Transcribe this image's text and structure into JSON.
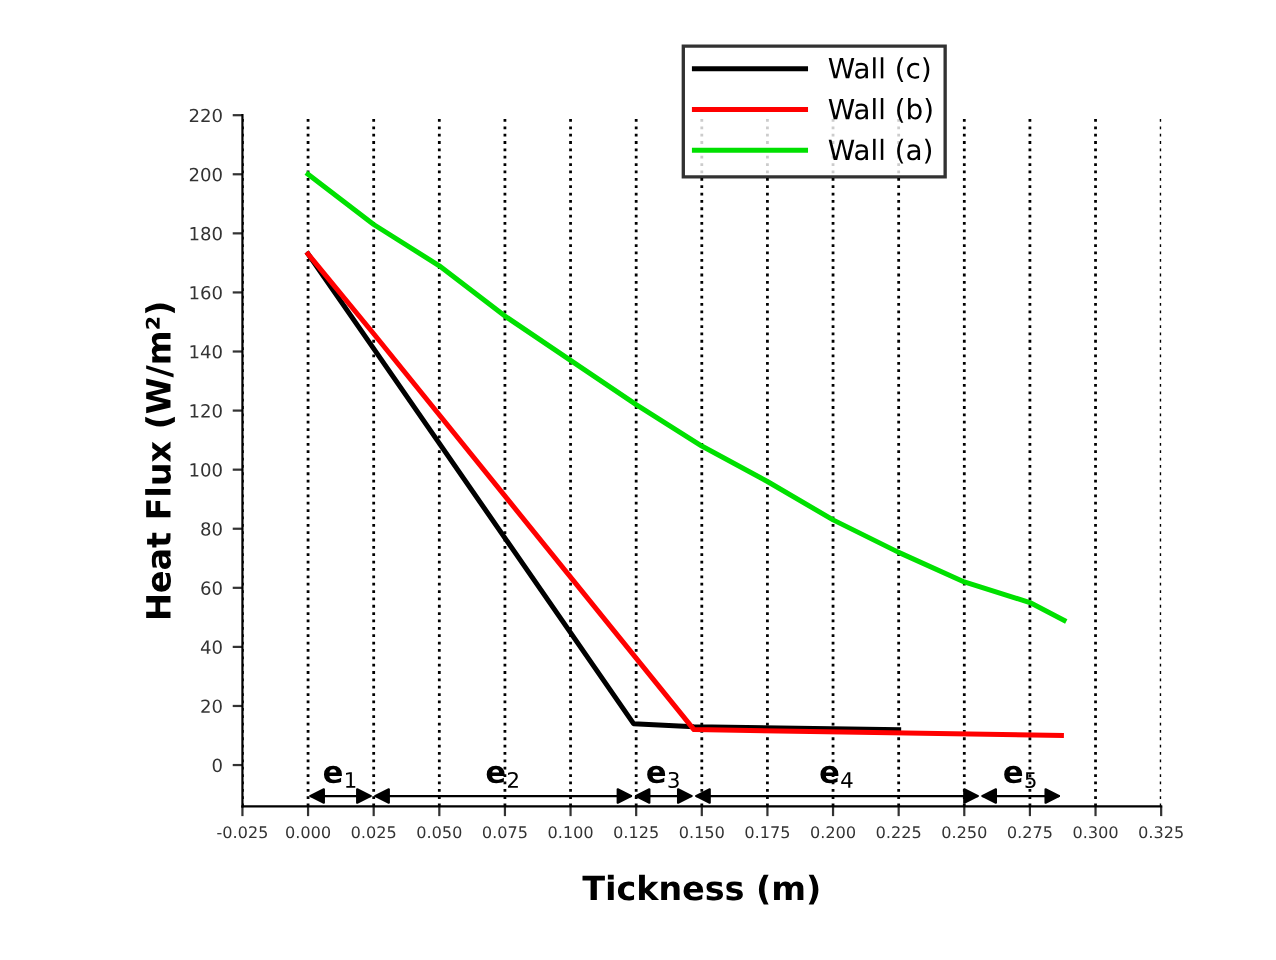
{
  "chart_data": {
    "type": "line",
    "xlabel": "Tickness (m)",
    "ylabel": "Heat Flux (W/m²)",
    "series": [
      {
        "name": "Wall (c)",
        "color": "#000000",
        "x": [
          0,
          0.025,
          0.124,
          0.147,
          0.225
        ],
        "values": [
          173,
          141,
          14,
          13,
          12
        ]
      },
      {
        "name": "Wall (b)",
        "color": "#ff0000",
        "x": [
          0,
          0.025,
          0.147,
          0.287
        ],
        "values": [
          173,
          146,
          12,
          10
        ]
      },
      {
        "name": "Wall (a)",
        "color": "#00e000",
        "x": [
          0,
          0.025,
          0.05,
          0.075,
          0.1,
          0.125,
          0.15,
          0.175,
          0.2,
          0.225,
          0.25,
          0.275,
          0.288
        ],
        "values": [
          200,
          183,
          169,
          152,
          137,
          122,
          108,
          96,
          83,
          72,
          62,
          55,
          49
        ]
      }
    ],
    "xlim": [
      -0.025,
      0.325
    ],
    "xticks": [
      {
        "value": -0.025,
        "label": "-0.025"
      },
      {
        "value": 0,
        "label": "0.000"
      },
      {
        "value": 0.025,
        "label": "0.025"
      },
      {
        "value": 0.05,
        "label": "0.050"
      },
      {
        "value": 0.075,
        "label": "0.075"
      },
      {
        "value": 0.1,
        "label": "0.100"
      },
      {
        "value": 0.125,
        "label": "0.125"
      },
      {
        "value": 0.15,
        "label": "0.150"
      },
      {
        "value": 0.175,
        "label": "0.175"
      },
      {
        "value": 0.2,
        "label": "0.200"
      },
      {
        "value": 0.225,
        "label": "0.225"
      },
      {
        "value": 0.25,
        "label": "0.250"
      },
      {
        "value": 0.275,
        "label": "0.275"
      },
      {
        "value": 0.3,
        "label": "0.300"
      },
      {
        "value": 0.325,
        "label": "0.325"
      }
    ],
    "ylim": [
      -14,
      220
    ],
    "yticks": [
      0,
      20,
      40,
      60,
      80,
      100,
      120,
      140,
      160,
      180,
      200,
      220
    ],
    "grid": "x",
    "legend": "top right",
    "marker": "none",
    "line_style": "solid",
    "annotations": [
      "e$_{1}$",
      "e$_{2}$",
      "e$_{3}$",
      "e$_{4}$",
      "e$_{5}$"
    ]
  }
}
